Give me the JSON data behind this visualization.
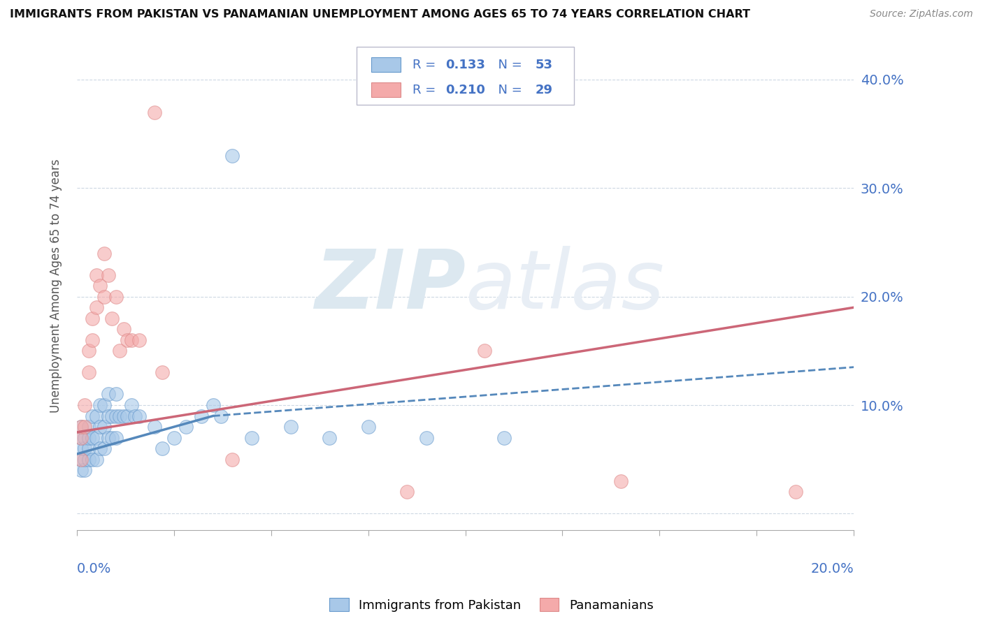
{
  "title": "IMMIGRANTS FROM PAKISTAN VS PANAMANIAN UNEMPLOYMENT AMONG AGES 65 TO 74 YEARS CORRELATION CHART",
  "source": "Source: ZipAtlas.com",
  "ylabel": "Unemployment Among Ages 65 to 74 years",
  "xlim": [
    0.0,
    0.2
  ],
  "ylim": [
    -0.015,
    0.435
  ],
  "yticks": [
    0.0,
    0.1,
    0.2,
    0.3,
    0.4
  ],
  "ytick_labels": [
    "",
    "10.0%",
    "20.0%",
    "30.0%",
    "40.0%"
  ],
  "blue_R": 0.133,
  "blue_N": 53,
  "pink_R": 0.21,
  "pink_N": 29,
  "blue_color": "#a8c8e8",
  "pink_color": "#f4aaaa",
  "blue_edge_color": "#6699cc",
  "pink_edge_color": "#dd8888",
  "blue_line_color": "#5588bb",
  "pink_line_color": "#cc6677",
  "tick_color": "#4472c4",
  "watermark_color": "#dce8f0",
  "blue_scatter_x": [
    0.001,
    0.001,
    0.001,
    0.001,
    0.001,
    0.002,
    0.002,
    0.002,
    0.002,
    0.003,
    0.003,
    0.003,
    0.003,
    0.004,
    0.004,
    0.004,
    0.005,
    0.005,
    0.005,
    0.006,
    0.006,
    0.006,
    0.007,
    0.007,
    0.007,
    0.008,
    0.008,
    0.008,
    0.009,
    0.009,
    0.01,
    0.01,
    0.01,
    0.011,
    0.012,
    0.013,
    0.014,
    0.015,
    0.016,
    0.02,
    0.022,
    0.025,
    0.028,
    0.032,
    0.035,
    0.037,
    0.04,
    0.045,
    0.055,
    0.065,
    0.075,
    0.09,
    0.11
  ],
  "blue_scatter_y": [
    0.04,
    0.05,
    0.06,
    0.07,
    0.08,
    0.04,
    0.05,
    0.06,
    0.07,
    0.05,
    0.06,
    0.07,
    0.08,
    0.05,
    0.07,
    0.09,
    0.05,
    0.07,
    0.09,
    0.06,
    0.08,
    0.1,
    0.06,
    0.08,
    0.1,
    0.07,
    0.09,
    0.11,
    0.07,
    0.09,
    0.07,
    0.09,
    0.11,
    0.09,
    0.09,
    0.09,
    0.1,
    0.09,
    0.09,
    0.08,
    0.06,
    0.07,
    0.08,
    0.09,
    0.1,
    0.09,
    0.33,
    0.07,
    0.08,
    0.07,
    0.08,
    0.07,
    0.07
  ],
  "pink_scatter_x": [
    0.001,
    0.001,
    0.001,
    0.002,
    0.002,
    0.003,
    0.003,
    0.004,
    0.004,
    0.005,
    0.005,
    0.006,
    0.007,
    0.007,
    0.008,
    0.009,
    0.01,
    0.011,
    0.012,
    0.013,
    0.014,
    0.016,
    0.02,
    0.022,
    0.04,
    0.085,
    0.105,
    0.14,
    0.185
  ],
  "pink_scatter_y": [
    0.05,
    0.07,
    0.08,
    0.08,
    0.1,
    0.13,
    0.15,
    0.16,
    0.18,
    0.19,
    0.22,
    0.21,
    0.2,
    0.24,
    0.22,
    0.18,
    0.2,
    0.15,
    0.17,
    0.16,
    0.16,
    0.16,
    0.37,
    0.13,
    0.05,
    0.02,
    0.15,
    0.03,
    0.02
  ],
  "blue_solid_trend_x": [
    0.0,
    0.035
  ],
  "blue_solid_trend_y": [
    0.055,
    0.09
  ],
  "blue_dash_trend_x": [
    0.035,
    0.2
  ],
  "blue_dash_trend_y": [
    0.09,
    0.135
  ],
  "pink_trend_x": [
    0.0,
    0.2
  ],
  "pink_trend_y": [
    0.075,
    0.19
  ],
  "legend_label_blue": "Immigrants from Pakistan",
  "legend_label_pink": "Panamanians"
}
